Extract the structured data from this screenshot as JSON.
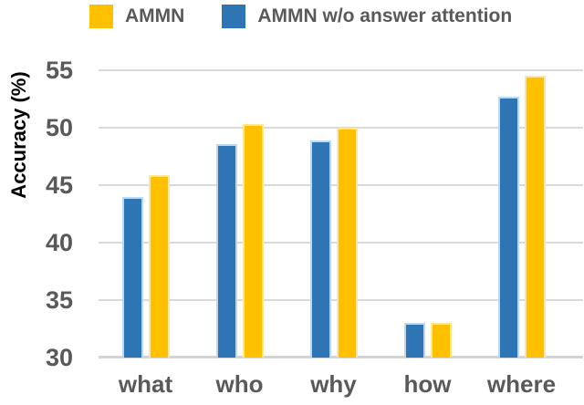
{
  "chart_data": {
    "type": "bar",
    "title": "",
    "categories": [
      "what",
      "who",
      "why",
      "how",
      "where"
    ],
    "series": [
      {
        "name": "AMMN w/o answer attention",
        "color": "#2E75B6",
        "border_color": "#BDD7EE",
        "values": [
          44.0,
          48.6,
          48.9,
          33.0,
          52.7
        ]
      },
      {
        "name": "AMMN",
        "color": "#FFC000",
        "border_color": "#FFE699",
        "values": [
          45.9,
          50.3,
          50.0,
          33.0,
          54.5
        ]
      }
    ],
    "xlabel": "",
    "ylabel": "Accuracy (%)",
    "ylim": [
      30,
      55
    ],
    "yticks": [
      30,
      35,
      40,
      45,
      50,
      55
    ],
    "grid": true,
    "legend_position": "top",
    "bar_order_in_group": [
      "AMMN w/o answer attention",
      "AMMN"
    ]
  },
  "legend": {
    "items": [
      {
        "label": "AMMN",
        "color": "#FFC000"
      },
      {
        "label": "AMMN w/o answer attention",
        "color": "#2E75B6"
      }
    ]
  },
  "colors": {
    "gridline": "#D9D9D9",
    "axis_line": "#D3D3D3",
    "tick_label": "#595959",
    "axis_title": "#000000"
  }
}
